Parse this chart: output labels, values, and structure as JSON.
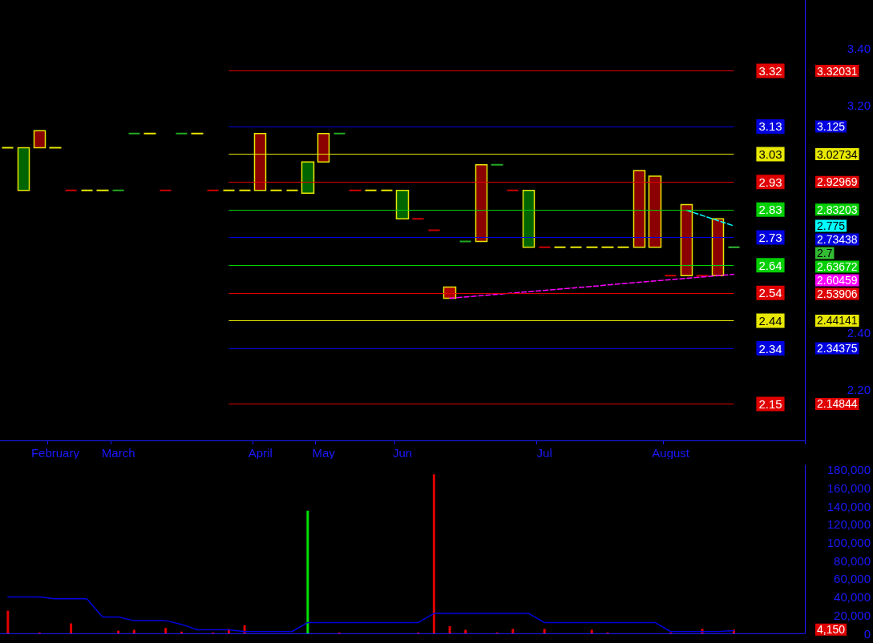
{
  "chart_data": [
    {
      "type": "candlestick",
      "categories": [
        null,
        null,
        null,
        "February",
        null,
        null,
        null,
        "March",
        null,
        null,
        null,
        null,
        null,
        null,
        null,
        null,
        "April",
        null,
        null,
        null,
        "May",
        null,
        null,
        null,
        null,
        "Jun",
        null,
        null,
        null,
        null,
        null,
        null,
        null,
        null,
        "Jul",
        null,
        null,
        null,
        null,
        null,
        null,
        null,
        "August",
        null,
        null,
        null,
        null,
        null,
        null,
        null,
        null
      ],
      "series": [
        {
          "color": "#e8e800",
          "ohlc": [
            [
              3.05,
              3.05,
              3.05,
              3.05
            ],
            [
              2.9,
              3.05,
              2.9,
              3.05
            ],
            [
              3.11,
              3.11,
              3.05,
              3.05
            ],
            [
              3.05,
              3.05,
              3.05,
              3.05
            ],
            [
              2.9,
              2.9,
              2.9,
              2.9
            ],
            [
              2.9,
              2.9,
              2.9,
              2.9
            ],
            [
              2.9,
              2.9,
              2.9,
              2.9
            ],
            [
              2.9,
              2.9,
              2.9,
              2.9
            ],
            [
              3.1,
              3.1,
              3.1,
              3.1
            ],
            [
              3.1,
              3.1,
              3.1,
              3.1
            ],
            [
              2.9,
              2.9,
              2.9,
              2.9
            ],
            [
              3.1,
              3.1,
              3.1,
              3.1
            ],
            [
              3.1,
              3.1,
              3.1,
              3.1
            ],
            [
              2.9,
              2.9,
              2.9,
              2.9
            ],
            [
              2.9,
              2.9,
              2.9,
              2.9
            ],
            [
              2.9,
              2.9,
              2.9,
              2.9
            ],
            [
              3.1,
              3.1,
              2.9,
              2.9
            ],
            [
              2.9,
              2.9,
              2.9,
              2.9
            ],
            [
              2.9,
              2.9,
              2.9,
              2.9
            ],
            [
              2.89,
              3.0,
              2.89,
              3.0
            ],
            [
              3.1,
              3.1,
              3.0,
              3.0
            ],
            [
              3.1,
              3.1,
              3.1,
              3.1
            ],
            [
              2.9,
              2.9,
              2.9,
              2.9
            ],
            [
              2.9,
              2.9,
              2.9,
              2.9
            ],
            [
              2.9,
              2.9,
              2.9,
              2.9
            ],
            [
              2.8,
              2.9,
              2.8,
              2.9
            ],
            [
              2.8,
              2.8,
              2.8,
              2.8
            ],
            [
              2.76,
              2.76,
              2.76,
              2.76
            ],
            [
              2.56,
              2.56,
              2.52,
              2.52
            ],
            [
              2.72,
              2.72,
              2.72,
              2.72
            ],
            [
              2.99,
              2.99,
              2.72,
              2.72
            ],
            [
              2.99,
              2.99,
              2.99,
              2.99
            ],
            [
              2.9,
              2.9,
              2.9,
              2.9
            ],
            [
              2.7,
              2.9,
              2.7,
              2.9
            ],
            [
              2.7,
              2.7,
              2.7,
              2.7
            ],
            [
              2.7,
              2.7,
              2.7,
              2.7
            ],
            [
              2.7,
              2.7,
              2.7,
              2.7
            ],
            [
              2.7,
              2.7,
              2.7,
              2.7
            ],
            [
              2.7,
              2.7,
              2.7,
              2.7
            ],
            [
              2.7,
              2.7,
              2.7,
              2.7
            ],
            [
              2.97,
              2.97,
              2.7,
              2.7
            ],
            [
              2.95,
              2.95,
              2.7,
              2.7
            ],
            [
              2.6,
              2.6,
              2.6,
              2.6
            ],
            [
              2.85,
              2.85,
              2.6,
              2.6
            ],
            [
              2.6,
              2.6,
              2.6,
              2.6
            ],
            [
              2.8,
              2.8,
              2.6,
              2.6
            ],
            [
              2.7,
              2.7,
              2.7,
              2.7
            ],
            null,
            null,
            null,
            null
          ],
          "colors": [
            "#e8e800",
            "#006400",
            "#8b0000",
            "#e8e800",
            "#cc0000",
            "#e8e800",
            "#e8e800",
            "#22aa22",
            "#22aa22",
            "#e8e800",
            "#cc0000",
            "#22aa22",
            "#e8e800",
            "#cc0000",
            "#e8e800",
            "#e8e800",
            "#8b0000",
            "#e8e800",
            "#e8e800",
            "#006400",
            "#8b0000",
            "#22aa22",
            "#cc0000",
            "#e8e800",
            "#e8e800",
            "#006400",
            "#cc0000",
            "#cc0000",
            "#b00000",
            "#22aa22",
            "#8b0000",
            "#22aa22",
            "#cc0000",
            "#006400",
            "#cc0000",
            "#e8e800",
            "#e8e800",
            "#e8e800",
            "#e8e800",
            "#e8e800",
            "#8b0000",
            "#8b0000",
            "#cc0000",
            "#8b0000",
            "#cc0000",
            "#8b0000",
            "#33bb33",
            null,
            null,
            null,
            null
          ]
        },
        {
          "type": "line",
          "color": "#ff00ff",
          "line_style": "dashed",
          "marker": "none",
          "values": [
            null,
            null,
            null,
            null,
            null,
            null,
            null,
            null,
            null,
            null,
            null,
            null,
            null,
            null,
            null,
            null,
            null,
            null,
            null,
            null,
            null,
            null,
            null,
            null,
            null,
            null,
            null,
            null,
            2.52,
            null,
            null,
            null,
            null,
            null,
            null,
            null,
            null,
            null,
            null,
            null,
            null,
            null,
            null,
            null,
            null,
            null,
            2.60459,
            null,
            null,
            null,
            null
          ]
        },
        {
          "type": "line",
          "color": "#00ffff",
          "line_style": "dashed",
          "marker": "none",
          "values": [
            null,
            null,
            null,
            null,
            null,
            null,
            null,
            null,
            null,
            null,
            null,
            null,
            null,
            null,
            null,
            null,
            null,
            null,
            null,
            null,
            null,
            null,
            null,
            null,
            null,
            null,
            null,
            null,
            null,
            null,
            null,
            null,
            null,
            null,
            null,
            null,
            null,
            null,
            null,
            null,
            null,
            null,
            null,
            2.83,
            null,
            null,
            2.775,
            null,
            null,
            null,
            null
          ]
        }
      ],
      "ylim": [
        2.02,
        3.57
      ],
      "yticks": [
        {
          "value": 2.2,
          "label": "2.20"
        },
        {
          "value": 2.4,
          "label": "2.40"
        },
        {
          "value": 3.2,
          "label": "3.20"
        },
        {
          "value": 3.4,
          "label": "3.40"
        }
      ],
      "annotations": [
        "3.32031",
        "3.125",
        "3.02734",
        "2.92969",
        "2.83203",
        "2.775",
        "2.73438",
        "2.7",
        "2.63672",
        "2.60459",
        "2.53906",
        "2.44141",
        "2.34375",
        "2.14844"
      ],
      "ref_lines": [
        {
          "axis": "y",
          "value": 3.32031,
          "label": "3.32",
          "color": "#e00000"
        },
        {
          "axis": "y",
          "value": 3.125,
          "label": "3.13",
          "color": "#0000e0"
        },
        {
          "axis": "y",
          "value": 3.02734,
          "label": "3.03",
          "color": "#e8e800"
        },
        {
          "axis": "y",
          "value": 2.92969,
          "label": "2.93",
          "color": "#e00000"
        },
        {
          "axis": "y",
          "value": 2.83203,
          "label": "2.83",
          "color": "#00d000"
        },
        {
          "axis": "y",
          "value": 2.73438,
          "label": "2.73",
          "color": "#0000e0"
        },
        {
          "axis": "y",
          "value": 2.63672,
          "label": "2.64",
          "color": "#00d000"
        },
        {
          "axis": "y",
          "value": 2.53906,
          "label": "2.54",
          "color": "#e00000"
        },
        {
          "axis": "y",
          "value": 2.44141,
          "label": "2.44",
          "color": "#e8e800"
        },
        {
          "axis": "y",
          "value": 2.34375,
          "label": "2.34",
          "color": "#0000e0"
        },
        {
          "axis": "y",
          "value": 2.14844,
          "label": "2.15",
          "color": "#e00000"
        }
      ]
    },
    {
      "type": "bar",
      "categories": [
        null,
        null,
        null,
        null,
        null,
        null,
        null,
        null,
        null,
        null,
        null,
        null,
        null,
        null,
        null,
        null,
        null,
        null,
        null,
        null,
        null,
        null,
        null,
        null,
        null,
        null,
        null,
        null,
        null,
        null,
        null,
        null,
        null,
        null,
        null,
        null,
        null,
        null,
        null,
        null,
        null,
        null,
        null,
        null,
        null,
        null,
        null,
        null,
        null,
        null,
        null
      ],
      "series": [
        {
          "values": [
            25000,
            null,
            1000,
            null,
            11000,
            null,
            null,
            3000,
            4000,
            null,
            6000,
            2000,
            null,
            1000,
            5000,
            9000,
            null,
            null,
            null,
            135000,
            null,
            1000,
            null,
            null,
            null,
            null,
            1000,
            175000,
            8000,
            4000,
            null,
            1000,
            5000,
            null,
            5000,
            null,
            null,
            4000,
            1000,
            null,
            null,
            null,
            1000,
            null,
            5000,
            null,
            4150,
            null,
            null,
            null,
            null
          ],
          "colors": [
            "#e00000",
            null,
            "#e00000",
            null,
            "#e00000",
            null,
            null,
            "#e00000",
            "#e00000",
            null,
            "#e00000",
            "#e00000",
            null,
            "#e00000",
            "#e00000",
            "#e00000",
            null,
            null,
            null,
            "#00e000",
            null,
            "#e00000",
            null,
            null,
            null,
            null,
            "#e00000",
            "#e00000",
            "#e00000",
            "#e00000",
            null,
            "#e00000",
            "#e00000",
            null,
            "#e00000",
            null,
            null,
            "#e00000",
            "#e00000",
            null,
            null,
            null,
            "#e00000",
            null,
            "#e00000",
            null,
            "#e00000",
            null,
            null,
            null,
            null
          ]
        },
        {
          "type": "line",
          "color": "#0000dd",
          "marker": "none",
          "values": [
            40000,
            40000,
            40000,
            38000,
            38000,
            38000,
            18000,
            18000,
            14000,
            14000,
            14000,
            10000,
            4000,
            4000,
            4000,
            2000,
            2000,
            2000,
            2000,
            12000,
            12000,
            12000,
            12000,
            12000,
            12000,
            12000,
            12000,
            22000,
            22000,
            22000,
            22000,
            22000,
            22000,
            22000,
            12000,
            12000,
            12000,
            12000,
            12000,
            12000,
            12000,
            12000,
            2000,
            2000,
            2000,
            2000,
            3000,
            null,
            null,
            null,
            null
          ]
        }
      ],
      "annotations": [
        "4,150"
      ],
      "ylim": [
        0,
        185000
      ],
      "yticks": [
        {
          "value": 0,
          "label": "0"
        },
        {
          "value": 20000,
          "label": "20,000"
        },
        {
          "value": 40000,
          "label": "40,000"
        },
        {
          "value": 60000,
          "label": "60,000"
        },
        {
          "value": 80000,
          "label": "80,000"
        },
        {
          "value": 100000,
          "label": "100,000"
        },
        {
          "value": 120000,
          "label": "120,000"
        },
        {
          "value": 140000,
          "label": "140,000"
        },
        {
          "value": 160000,
          "label": "160,000"
        },
        {
          "value": 180000,
          "label": "180,000"
        }
      ],
      "tick_labels": "y"
    }
  ]
}
